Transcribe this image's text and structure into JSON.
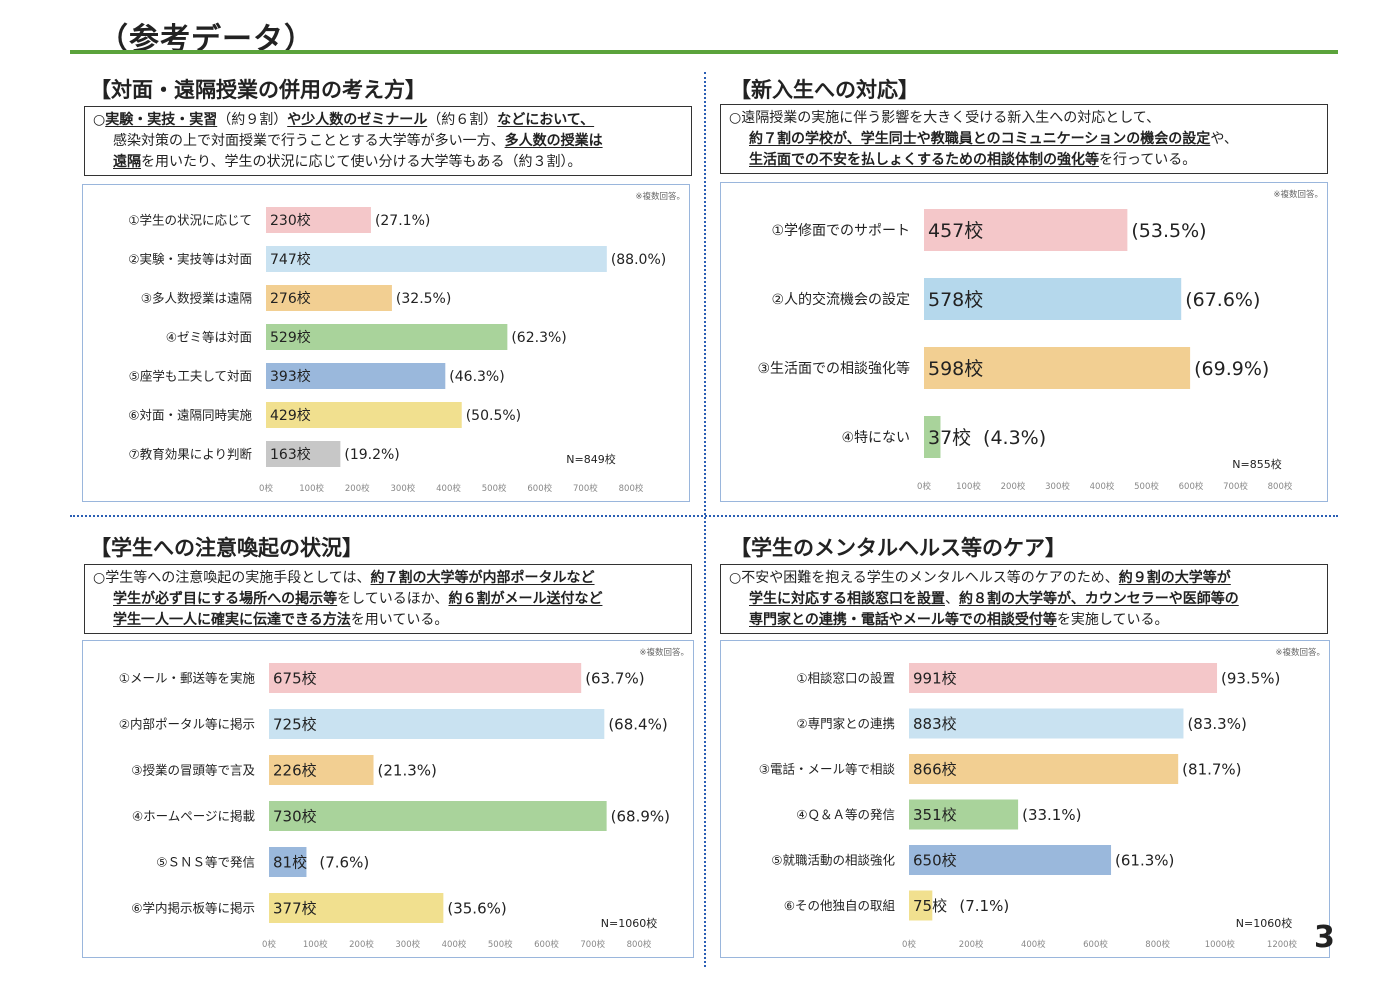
{
  "page": {
    "title": "（参考データ）",
    "page_number": "3"
  },
  "sections": [
    {
      "heading": "【対面・遠隔授業の併用の考え方】",
      "summary": [
        [
          {
            "t": "○"
          },
          {
            "t": "実験・実技・実習",
            "b": true,
            "u": true
          },
          {
            "t": "（約９割）"
          },
          {
            "t": "や少人数のゼミナール",
            "b": true,
            "u": true
          },
          {
            "t": "（約６割）"
          },
          {
            "t": "などにおいて、",
            "b": true,
            "u": true
          }
        ],
        [
          {
            "t": "感染対策の上で対面授業で行うこととする大学等が多い一方、"
          },
          {
            "t": "多人数の授業は",
            "b": true,
            "u": true
          }
        ],
        [
          {
            "t": "遠隔",
            "b": true,
            "u": true
          },
          {
            "t": "を用いたり、学生の状況に応じて使い分ける大学等もある（約３割）。"
          }
        ]
      ],
      "note": "※複数回答。",
      "n_label": "N=849校"
    },
    {
      "heading": "【新入生への対応】",
      "summary": [
        [
          {
            "t": "○遠隔授業の実施に伴う影響を大きく受ける新入生への対応として、"
          }
        ],
        [
          {
            "t": "約７割の学校が、学生同士や教職員とのコミュニケーションの機会の設定",
            "b": true,
            "u": true
          },
          {
            "t": "や、"
          }
        ],
        [
          {
            "t": "生活面での不安を払しょくするための相談体制の強化等",
            "b": true,
            "u": true
          },
          {
            "t": "を行っている。"
          }
        ]
      ],
      "note": "※複数回答。",
      "n_label": "N=855校"
    },
    {
      "heading": "【学生への注意喚起の状況】",
      "summary": [
        [
          {
            "t": "○学生等への注意喚起の実施手段としては、"
          },
          {
            "t": "約７割の大学等が内部ポータルなど",
            "b": true,
            "u": true
          }
        ],
        [
          {
            "t": "学生が必ず目にする場所への掲示等",
            "b": true,
            "u": true
          },
          {
            "t": "をしているほか、"
          },
          {
            "t": "約６割がメール送付など",
            "b": true,
            "u": true
          }
        ],
        [
          {
            "t": "学生一人一人に確実に伝達できる方法",
            "b": true,
            "u": true
          },
          {
            "t": "を用いている。"
          }
        ]
      ],
      "note": "※複数回答。",
      "n_label": "N=1060校"
    },
    {
      "heading": "【学生のメンタルヘルス等のケア】",
      "summary": [
        [
          {
            "t": "○不安や困難を抱える学生のメンタルヘルス等のケアのため、"
          },
          {
            "t": "約９割の大学等が",
            "b": true,
            "u": true
          }
        ],
        [
          {
            "t": "学生に対応する相談窓口を設置",
            "b": true,
            "u": true
          },
          {
            "t": "、"
          },
          {
            "t": "約８割の大学等が、カウンセラーや医師等の",
            "b": true,
            "u": true
          }
        ],
        [
          {
            "t": "専門家との連携・電話やメール等での相談受付等",
            "b": true,
            "u": true
          },
          {
            "t": "を実施している。"
          }
        ]
      ],
      "note": "※複数回答。",
      "n_label": "N=1060校"
    }
  ],
  "chart_data": [
    {
      "type": "bar",
      "orientation": "horizontal",
      "categories": [
        "①学生の状況に応じて",
        "②実験・実技等は対面",
        "③多人数授業は遠隔",
        "④ゼミ等は対面",
        "⑤座学も工夫して対面",
        "⑥対面・遠隔同時実施",
        "⑦教育効果により判断"
      ],
      "values": [
        230,
        747,
        276,
        529,
        393,
        429,
        163
      ],
      "value_labels": [
        "230校",
        "747校",
        "276校",
        "529校",
        "393校",
        "429校",
        "163校"
      ],
      "percent_labels": [
        "(27.1%)",
        "(88.0%)",
        "(32.5%)",
        "(62.3%)",
        "(46.3%)",
        "(50.5%)",
        "(19.2%)"
      ],
      "colors": [
        "#f4c7c9",
        "#c9e2f1",
        "#f2cf92",
        "#a9d39b",
        "#9ab8dc",
        "#f1e08f",
        "#c7c7c7"
      ],
      "xlim": [
        0,
        800
      ],
      "xticks": [
        "0校",
        "100校",
        "200校",
        "300校",
        "400校",
        "500校",
        "600校",
        "700校",
        "800校"
      ],
      "grid": false
    },
    {
      "type": "bar",
      "orientation": "horizontal",
      "categories": [
        "①学修面でのサポート",
        "②人的交流機会の設定",
        "③生活面での相談強化等",
        "④特にない"
      ],
      "values": [
        457,
        578,
        598,
        37
      ],
      "value_labels": [
        "457校",
        "578校",
        "598校",
        "37校"
      ],
      "percent_labels": [
        "(53.5%)",
        "(67.6%)",
        "(69.9%)",
        "(4.3%)"
      ],
      "colors": [
        "#f4c7c9",
        "#b5d8ec",
        "#f2cf92",
        "#a9d39b"
      ],
      "xlim": [
        0,
        800
      ],
      "xticks": [
        "0校",
        "100校",
        "200校",
        "300校",
        "400校",
        "500校",
        "600校",
        "700校",
        "800校"
      ],
      "grid": false
    },
    {
      "type": "bar",
      "orientation": "horizontal",
      "categories": [
        "①メール・郵送等を実施",
        "②内部ポータル等に掲示",
        "③授業の冒頭等で言及",
        "④ホームページに掲載",
        "⑤ＳＮＳ等で発信",
        "⑥学内掲示板等に掲示"
      ],
      "values": [
        675,
        725,
        226,
        730,
        81,
        377
      ],
      "value_labels": [
        "675校",
        "725校",
        "226校",
        "730校",
        "81校",
        "377校"
      ],
      "percent_labels": [
        "(63.7%)",
        "(68.4%)",
        "(21.3%)",
        "(68.9%)",
        "(7.6%)",
        "(35.6%)"
      ],
      "colors": [
        "#f4c7c9",
        "#c9e2f1",
        "#f2cf92",
        "#a9d39b",
        "#9ab8dc",
        "#f1e08f"
      ],
      "xlim": [
        0,
        800
      ],
      "xticks": [
        "0校",
        "100校",
        "200校",
        "300校",
        "400校",
        "500校",
        "600校",
        "700校",
        "800校"
      ],
      "grid": false
    },
    {
      "type": "bar",
      "orientation": "horizontal",
      "categories": [
        "①相談窓口の設置",
        "②専門家との連携",
        "③電話・メール等で相談",
        "④Ｑ＆Ａ等の発信",
        "⑤就職活動の相談強化",
        "⑥その他独自の取組"
      ],
      "values": [
        991,
        883,
        866,
        351,
        650,
        75
      ],
      "value_labels": [
        "991校",
        "883校",
        "866校",
        "351校",
        "650校",
        "75校"
      ],
      "percent_labels": [
        "(93.5%)",
        "(83.3%)",
        "(81.7%)",
        "(33.1%)",
        "(61.3%)",
        "(7.1%)"
      ],
      "colors": [
        "#f4c7c9",
        "#c9e2f1",
        "#f2cf92",
        "#a9d39b",
        "#9ab8dc",
        "#f1e08f"
      ],
      "xlim": [
        0,
        1200
      ],
      "xticks": [
        "0校",
        "200校",
        "400校",
        "600校",
        "800校",
        "1000校",
        "1200校"
      ],
      "grid": false
    }
  ]
}
